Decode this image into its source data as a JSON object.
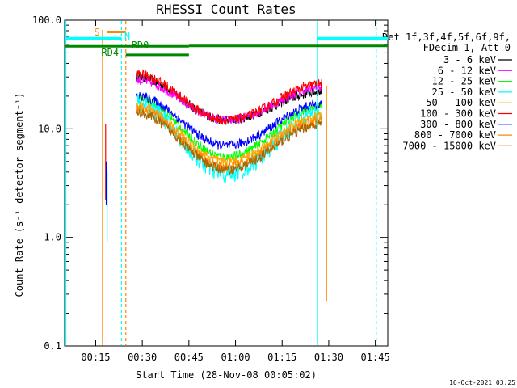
{
  "chart_data": {
    "type": "line",
    "title": "RHESSI Count Rates",
    "xlabel": "Start Time (28-Nov-08 00:05:02)",
    "ylabel": "Count Rate (s⁻¹ detector segment⁻¹)",
    "yscale": "log",
    "ylim": [
      0.1,
      100
    ],
    "xlim_minutes": [
      0,
      104
    ],
    "x_ticks": [
      "00:15",
      "00:30",
      "00:45",
      "01:00",
      "01:15",
      "01:30",
      "01:45"
    ],
    "y_ticks": [
      "0.1",
      "1.0",
      "10.0",
      "100.0"
    ],
    "legend": {
      "placement": "right",
      "header_line1": "Det 1f,3f,4f,5f,6f,9f,",
      "header_line2": "FDecim 1, Att 0"
    },
    "series": [
      {
        "name": "3 - 6 keV",
        "color": "#000000",
        "profile": [
          30,
          12,
          22
        ]
      },
      {
        "name": "6 - 12 keV",
        "color": "#ff00ff",
        "profile": [
          28,
          12,
          24
        ]
      },
      {
        "name": "12 - 25 keV",
        "color": "#00ff00",
        "profile": [
          19,
          5.5,
          16
        ]
      },
      {
        "name": "25 - 50 keV",
        "color": "#00ffff",
        "profile": [
          17,
          3.8,
          14
        ]
      },
      {
        "name": "50 - 100 keV",
        "color": "#ffaa00",
        "profile": [
          16,
          5,
          13
        ]
      },
      {
        "name": "100 - 300 keV",
        "color": "#ff0000",
        "profile": [
          32,
          12,
          26
        ]
      },
      {
        "name": "300 - 800 keV",
        "color": "#0000ff",
        "profile": [
          20,
          7,
          17
        ]
      },
      {
        "name": "800 - 7000 keV",
        "color": "#ff8800",
        "profile": [
          15,
          4.5,
          12
        ]
      },
      {
        "name": "7000 - 15000 keV",
        "color": "#aa6600",
        "profile": [
          14,
          4.2,
          11
        ]
      }
    ],
    "annotations": [
      {
        "label": "S",
        "color": "#ff8800"
      },
      {
        "label": "N",
        "color": "#00ffff"
      },
      {
        "label": "RD0",
        "color": "#008800"
      },
      {
        "label": "RD4",
        "color": "#008800"
      }
    ],
    "footer": "16-Oct-2021 03:25"
  }
}
